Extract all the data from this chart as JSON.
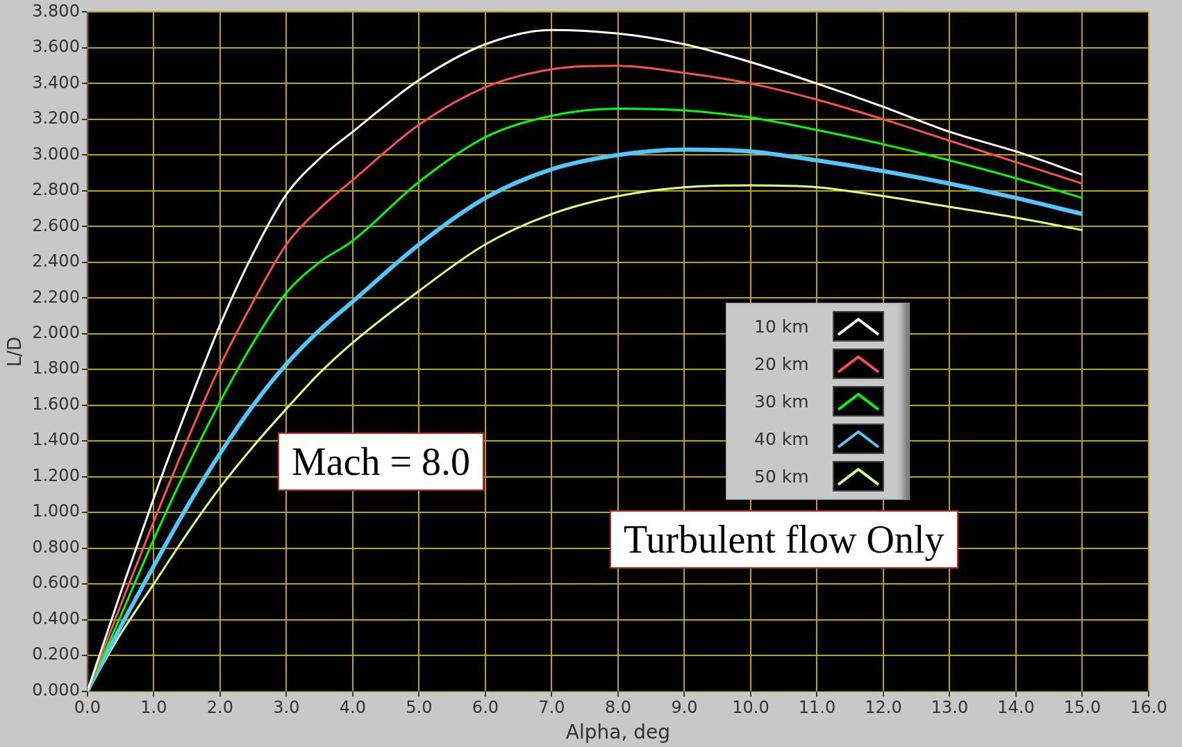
{
  "chart_data": {
    "type": "line",
    "xlabel": "Alpha, deg",
    "ylabel": "L/D",
    "x": [
      0,
      0.5,
      1,
      1.5,
      2,
      2.5,
      3,
      3.5,
      4,
      5,
      6,
      7,
      8,
      9,
      10,
      11,
      12,
      13,
      14,
      15
    ],
    "series": [
      {
        "name": "10 km",
        "color": "#ffffff",
        "values": [
          0,
          0.55,
          1.08,
          1.58,
          2.05,
          2.45,
          2.78,
          2.98,
          3.13,
          3.42,
          3.62,
          3.7,
          3.68,
          3.62,
          3.52,
          3.4,
          3.27,
          3.13,
          3.02,
          2.89
        ]
      },
      {
        "name": "20 km",
        "color": "#ff5050",
        "values": [
          0,
          0.48,
          0.95,
          1.4,
          1.82,
          2.18,
          2.5,
          2.7,
          2.86,
          3.17,
          3.38,
          3.48,
          3.5,
          3.46,
          3.4,
          3.31,
          3.2,
          3.08,
          2.96,
          2.84
        ]
      },
      {
        "name": "30 km",
        "color": "#00ff00",
        "values": [
          0,
          0.42,
          0.85,
          1.25,
          1.62,
          1.95,
          2.23,
          2.4,
          2.52,
          2.85,
          3.1,
          3.22,
          3.26,
          3.25,
          3.21,
          3.14,
          3.06,
          2.97,
          2.87,
          2.76
        ]
      },
      {
        "name": "40 km",
        "color": "#50c8ff",
        "values": [
          0,
          0.36,
          0.7,
          1.03,
          1.33,
          1.6,
          1.83,
          2.02,
          2.18,
          2.5,
          2.76,
          2.92,
          3.0,
          3.03,
          3.02,
          2.97,
          2.91,
          2.84,
          2.76,
          2.67
        ]
      },
      {
        "name": "50 km",
        "color": "#e0ff80",
        "values": [
          0,
          0.32,
          0.6,
          0.88,
          1.14,
          1.37,
          1.58,
          1.78,
          1.95,
          2.24,
          2.5,
          2.67,
          2.77,
          2.82,
          2.83,
          2.82,
          2.77,
          2.71,
          2.65,
          2.58
        ]
      }
    ],
    "xlim": [
      0,
      16
    ],
    "xticks": [
      {
        "value": 0,
        "label": "0.0"
      },
      {
        "value": 1,
        "label": "1.0"
      },
      {
        "value": 2,
        "label": "2.0"
      },
      {
        "value": 3,
        "label": "3.0"
      },
      {
        "value": 4,
        "label": "4.0"
      },
      {
        "value": 5,
        "label": "5.0"
      },
      {
        "value": 6,
        "label": "6.0"
      },
      {
        "value": 7,
        "label": "7.0"
      },
      {
        "value": 8,
        "label": "8.0"
      },
      {
        "value": 9,
        "label": "9.0"
      },
      {
        "value": 10,
        "label": "10.0"
      },
      {
        "value": 11,
        "label": "11.0"
      },
      {
        "value": 12,
        "label": "12.0"
      },
      {
        "value": 13,
        "label": "13.0"
      },
      {
        "value": 14,
        "label": "14.0"
      },
      {
        "value": 15,
        "label": "15.0"
      },
      {
        "value": 16,
        "label": "16.0"
      }
    ],
    "ylim": [
      0,
      3.8
    ],
    "yticks": [
      {
        "value": 0,
        "label": "0.000"
      },
      {
        "value": 0.2,
        "label": "0.200"
      },
      {
        "value": 0.4,
        "label": "0.400"
      },
      {
        "value": 0.6,
        "label": "0.600"
      },
      {
        "value": 0.8,
        "label": "0.800"
      },
      {
        "value": 1,
        "label": "1.000"
      },
      {
        "value": 1.2,
        "label": "1.200"
      },
      {
        "value": 1.4,
        "label": "1.400"
      },
      {
        "value": 1.6,
        "label": "1.600"
      },
      {
        "value": 1.8,
        "label": "1.800"
      },
      {
        "value": 2,
        "label": "2.000"
      },
      {
        "value": 2.2,
        "label": "2.200"
      },
      {
        "value": 2.4,
        "label": "2.400"
      },
      {
        "value": 2.6,
        "label": "2.600"
      },
      {
        "value": 2.8,
        "label": "2.800"
      },
      {
        "value": 3,
        "label": "3.000"
      },
      {
        "value": 3.2,
        "label": "3.200"
      },
      {
        "value": 3.4,
        "label": "3.400"
      },
      {
        "value": 3.6,
        "label": "3.600"
      },
      {
        "value": 3.8,
        "label": "3.800"
      }
    ],
    "grid": true,
    "legend": "center",
    "marker": "none",
    "line_style": "solid",
    "annotations": [
      "Mach = 8.0",
      "Turbulent flow Only"
    ]
  }
}
